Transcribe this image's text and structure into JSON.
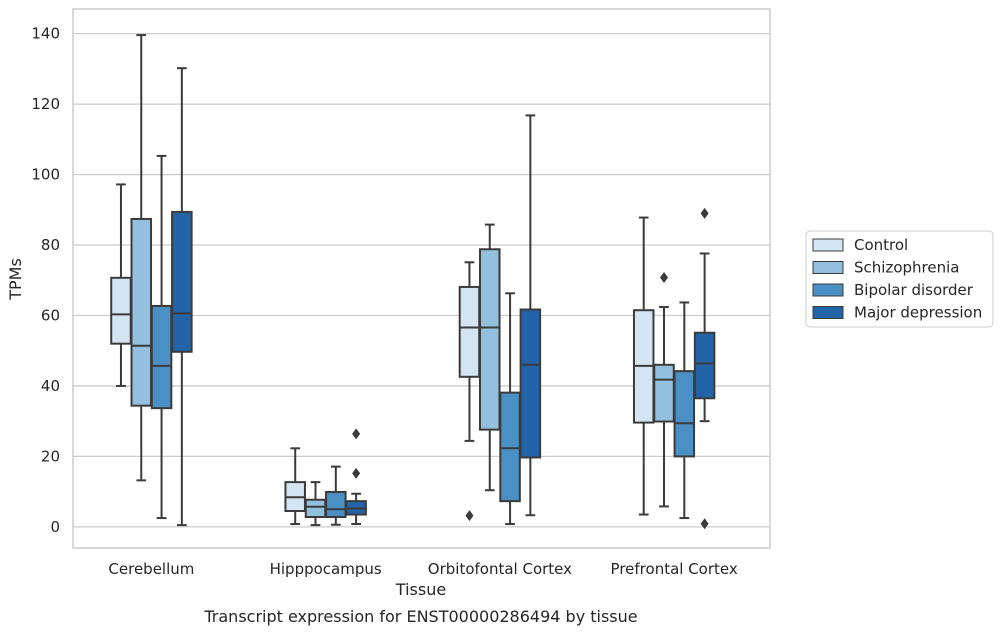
{
  "chart_data": {
    "type": "box",
    "caption": "Transcript expression for ENST00000286494 by tissue",
    "xlabel": "Tissue",
    "ylabel": "TPMs",
    "ylim": [
      -6,
      147
    ],
    "yticks": [
      0,
      20,
      40,
      60,
      80,
      100,
      120,
      140
    ],
    "grid": "horizontal",
    "legend_position": "right",
    "categories": [
      "Cerebellum",
      "Hipppocampus",
      "Orbitofontal Cortex",
      "Prefrontal Cortex"
    ],
    "series": [
      {
        "name": "Control",
        "color": "#d3e4f3",
        "boxes": [
          {
            "whislo": 40,
            "q1": 52,
            "med": 60.3,
            "q3": 70.7,
            "whishi": 97.2,
            "fliers": []
          },
          {
            "whislo": 0.8,
            "q1": 4.5,
            "med": 8.4,
            "q3": 12.7,
            "whishi": 22.3,
            "fliers": []
          },
          {
            "whislo": 24.4,
            "q1": 42.6,
            "med": 56.6,
            "q3": 68.1,
            "whishi": 75.1,
            "fliers": [
              3.2
            ]
          },
          {
            "whislo": 3.5,
            "q1": 29.6,
            "med": 45.7,
            "q3": 61.5,
            "whishi": 87.8,
            "fliers": []
          }
        ]
      },
      {
        "name": "Schizophrenia",
        "color": "#93c0de",
        "boxes": [
          {
            "whislo": 13.2,
            "q1": 34.4,
            "med": 51.4,
            "q3": 87.4,
            "whishi": 139.6,
            "fliers": []
          },
          {
            "whislo": 0.5,
            "q1": 2.8,
            "med": 5.7,
            "q3": 7.7,
            "whishi": 12.7,
            "fliers": []
          },
          {
            "whislo": 10.4,
            "q1": 27.6,
            "med": 56.6,
            "q3": 78.8,
            "whishi": 85.8,
            "fliers": []
          },
          {
            "whislo": 5.8,
            "q1": 29.9,
            "med": 41.8,
            "q3": 46,
            "whishi": 62.4,
            "fliers": [
              70.8
            ]
          }
        ]
      },
      {
        "name": "Bipolar disorder",
        "color": "#4a90c4",
        "boxes": [
          {
            "whislo": 2.5,
            "q1": 33.7,
            "med": 45.7,
            "q3": 62.7,
            "whishi": 105.3,
            "fliers": []
          },
          {
            "whislo": 0.6,
            "q1": 2.8,
            "med": 5,
            "q3": 9.9,
            "whishi": 17.1,
            "fliers": []
          },
          {
            "whislo": 0.8,
            "q1": 7.3,
            "med": 22.3,
            "q3": 38.1,
            "whishi": 66.3,
            "fliers": []
          },
          {
            "whislo": 2.5,
            "q1": 20,
            "med": 29.4,
            "q3": 44.2,
            "whishi": 63.7,
            "fliers": []
          }
        ]
      },
      {
        "name": "Major depression",
        "color": "#2364a8",
        "boxes": [
          {
            "whislo": 0.5,
            "q1": 49.7,
            "med": 60.6,
            "q3": 89.4,
            "whishi": 130.2,
            "fliers": []
          },
          {
            "whislo": 0.8,
            "q1": 3.5,
            "med": 5.2,
            "q3": 7.3,
            "whishi": 9.4,
            "fliers": [
              15.2,
              26.4
            ]
          },
          {
            "whislo": 3.3,
            "q1": 19.7,
            "med": 46,
            "q3": 61.7,
            "whishi": 116.8,
            "fliers": []
          },
          {
            "whislo": 30,
            "q1": 36.5,
            "med": 46.4,
            "q3": 55.1,
            "whishi": 77.6,
            "fliers": [
              0.9,
              89
            ]
          }
        ]
      }
    ]
  }
}
